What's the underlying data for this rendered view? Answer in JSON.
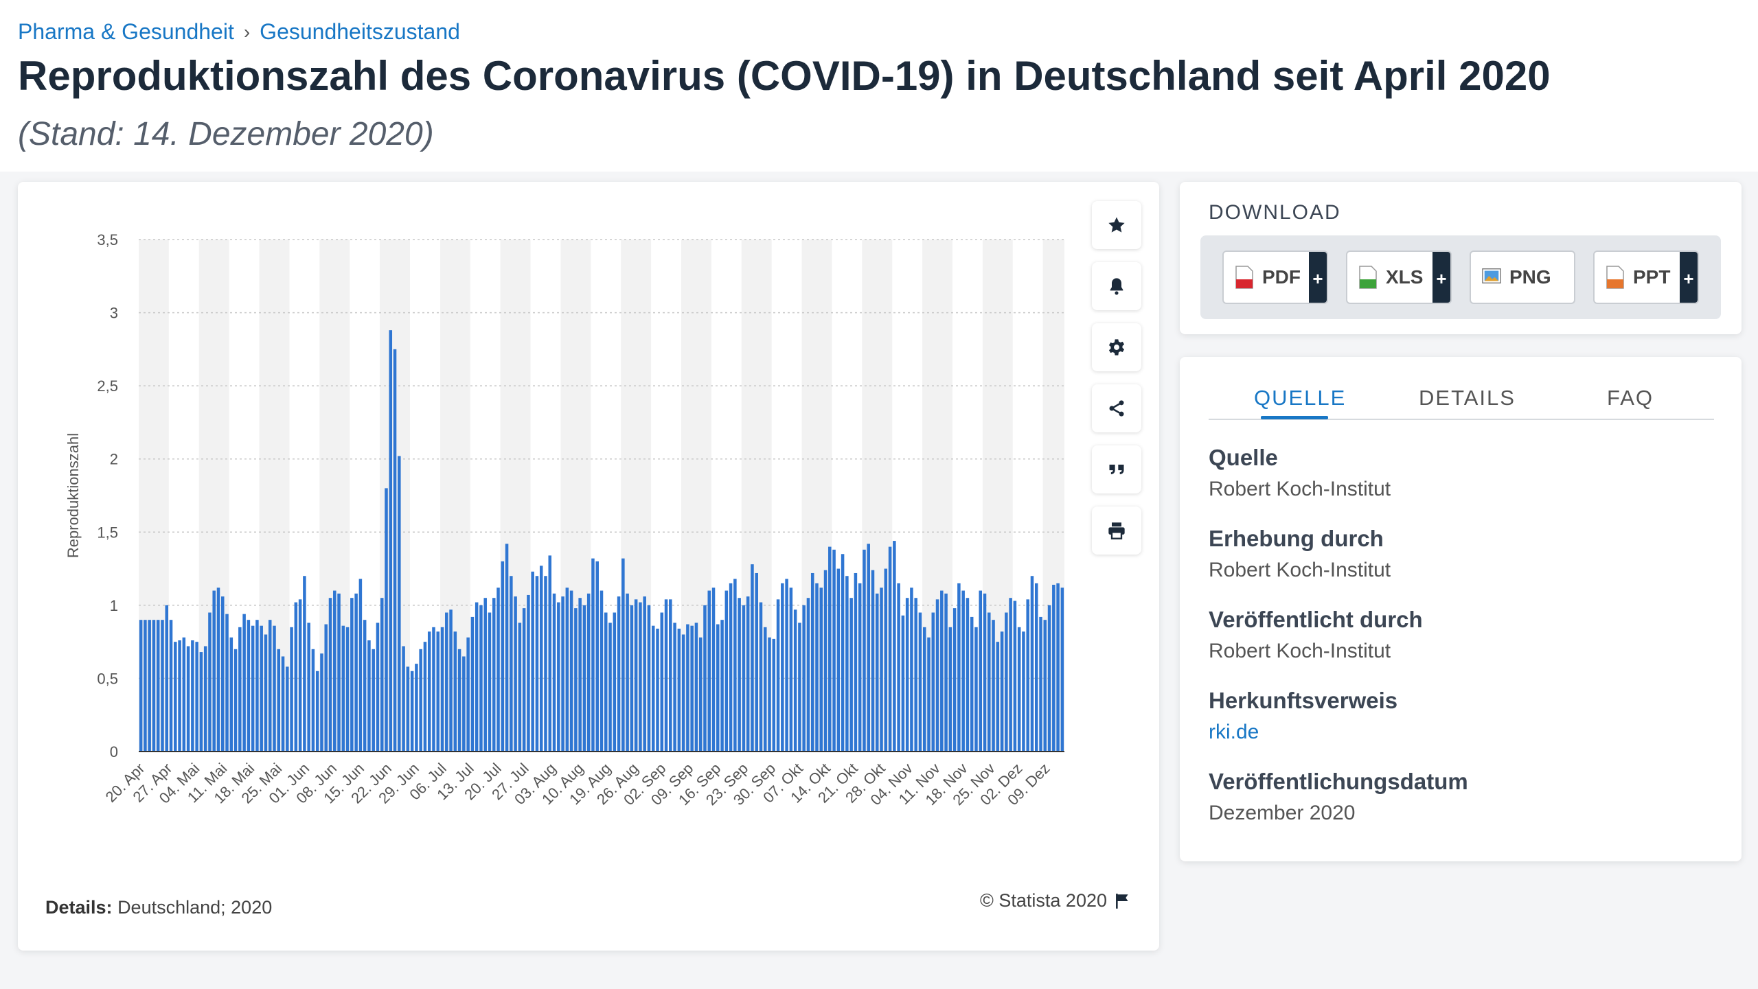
{
  "breadcrumb": {
    "item1": "Pharma & Gesundheit",
    "sep": "›",
    "item2": "Gesundheitszustand"
  },
  "page": {
    "title": "Reproduktionszahl des Coronavirus (COVID-19) in Deutschland seit April 2020",
    "subtitle": "(Stand: 14. Dezember 2020)"
  },
  "chart_footer": {
    "details_label": "Details:",
    "details_value": "Deutschland; 2020",
    "credit": "© Statista 2020"
  },
  "toolbar_icons": [
    "star-icon",
    "bell-icon",
    "gear-icon",
    "share-icon",
    "quote-icon",
    "print-icon"
  ],
  "download": {
    "title": "DOWNLOAD",
    "buttons": [
      {
        "label": "PDF",
        "icon": "pdf-file-icon",
        "has_plus": true
      },
      {
        "label": "XLS",
        "icon": "xls-file-icon",
        "has_plus": true
      },
      {
        "label": "PNG",
        "icon": "png-file-icon",
        "has_plus": false
      },
      {
        "label": "PPT",
        "icon": "ppt-file-icon",
        "has_plus": true
      }
    ]
  },
  "info": {
    "tabs": [
      "QUELLE",
      "DETAILS",
      "FAQ"
    ],
    "active_tab": "QUELLE",
    "items": [
      {
        "key": "Quelle",
        "value": "Robert Koch-Institut",
        "link": false
      },
      {
        "key": "Erhebung durch",
        "value": "Robert Koch-Institut",
        "link": false
      },
      {
        "key": "Veröffentlicht durch",
        "value": "Robert Koch-Institut",
        "link": false
      },
      {
        "key": "Herkunftsverweis",
        "value": "rki.de",
        "link": true
      },
      {
        "key": "Veröffentlichungsdatum",
        "value": "Dezember 2020",
        "link": false
      }
    ]
  },
  "colors": {
    "accent": "#1877c5",
    "bar": "#2f76d2",
    "dark": "#1c2a3a"
  },
  "chart_data": {
    "type": "bar",
    "title": "",
    "xlabel": "",
    "ylabel": "Reproduktionszahl",
    "ylim": [
      0,
      3.5
    ],
    "yticks": [
      0,
      0.5,
      1,
      1.5,
      2,
      2.5,
      3,
      3.5
    ],
    "ytick_labels": [
      "0",
      "0,5",
      "1",
      "1,5",
      "2",
      "2,5",
      "3",
      "3,5"
    ],
    "grid": true,
    "legend": "none",
    "xtick_labels": [
      "20. Apr",
      "27. Apr",
      "04. Mai",
      "11. Mai",
      "18. Mai",
      "25. Mai",
      "01. Jun",
      "08. Jun",
      "15. Jun",
      "22. Jun",
      "29. Jun",
      "06. Jul",
      "13. Jul",
      "20. Jul",
      "27. Jul",
      "03. Aug",
      "10. Aug",
      "19. Aug",
      "26. Aug",
      "02. Sep",
      "09. Sep",
      "16. Sep",
      "23. Sep",
      "30. Sep",
      "07. Okt",
      "14. Okt",
      "21. Okt",
      "28. Okt",
      "04. Nov",
      "11. Nov",
      "18. Nov",
      "25. Nov",
      "02. Dez",
      "09. Dez"
    ],
    "values": [
      0.9,
      0.9,
      0.9,
      0.9,
      0.9,
      0.9,
      1.0,
      0.9,
      0.75,
      0.76,
      0.78,
      0.72,
      0.76,
      0.75,
      0.68,
      0.72,
      0.95,
      1.1,
      1.12,
      1.06,
      0.94,
      0.78,
      0.7,
      0.85,
      0.94,
      0.9,
      0.86,
      0.9,
      0.86,
      0.8,
      0.9,
      0.86,
      0.7,
      0.65,
      0.58,
      0.85,
      1.02,
      1.04,
      1.2,
      0.88,
      0.7,
      0.55,
      0.67,
      0.87,
      1.05,
      1.1,
      1.08,
      0.86,
      0.85,
      1.05,
      1.08,
      1.18,
      0.9,
      0.76,
      0.7,
      0.88,
      1.05,
      1.8,
      2.88,
      2.75,
      2.02,
      0.72,
      0.58,
      0.55,
      0.6,
      0.7,
      0.75,
      0.82,
      0.85,
      0.82,
      0.85,
      0.95,
      0.97,
      0.82,
      0.7,
      0.65,
      0.78,
      0.92,
      1.02,
      1.0,
      1.05,
      0.95,
      1.05,
      1.12,
      1.3,
      1.42,
      1.2,
      1.06,
      0.88,
      0.98,
      1.07,
      1.23,
      1.2,
      1.27,
      1.2,
      1.34,
      1.08,
      1.02,
      1.06,
      1.12,
      1.1,
      0.98,
      1.05,
      1.0,
      1.08,
      1.32,
      1.3,
      1.1,
      0.95,
      0.88,
      0.95,
      1.06,
      1.32,
      1.08,
      1.0,
      1.04,
      1.02,
      1.06,
      1.0,
      0.86,
      0.84,
      0.95,
      1.04,
      1.04,
      0.88,
      0.84,
      0.8,
      0.87,
      0.86,
      0.88,
      0.78,
      1.0,
      1.1,
      1.12,
      0.87,
      0.9,
      1.1,
      1.15,
      1.18,
      1.05,
      1.0,
      1.06,
      1.28,
      1.22,
      1.02,
      0.85,
      0.78,
      0.77,
      1.04,
      1.15,
      1.18,
      1.12,
      0.97,
      0.88,
      1.0,
      1.05,
      1.22,
      1.15,
      1.12,
      1.24,
      1.4,
      1.38,
      1.25,
      1.35,
      1.2,
      1.05,
      1.22,
      1.15,
      1.38,
      1.42,
      1.24,
      1.08,
      1.12,
      1.25,
      1.4,
      1.44,
      1.15,
      0.93,
      1.05,
      1.12,
      1.05,
      0.95,
      0.85,
      0.78,
      0.95,
      1.04,
      1.1,
      1.08,
      0.85,
      0.98,
      1.15,
      1.1,
      1.05,
      0.92,
      0.85,
      1.1,
      1.08,
      0.95,
      0.9,
      0.75,
      0.82,
      0.95,
      1.05,
      1.03,
      0.85,
      0.82,
      1.04,
      1.2,
      1.15,
      0.92,
      0.9,
      1.0,
      1.14,
      1.15,
      1.12
    ]
  }
}
